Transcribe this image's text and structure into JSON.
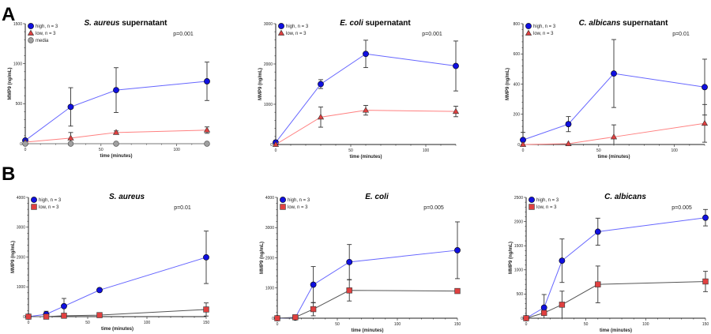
{
  "panel_labels": [
    "A",
    "B"
  ],
  "colors": {
    "high": "#1010e0",
    "high_line": "#6666ff",
    "low": "#e04040",
    "low_line_A": "#ff8080",
    "low_line_B": "#555555",
    "media": "#a0a0a0",
    "error": "#333333"
  },
  "chart_data": [
    {
      "type": "line",
      "panel": "A",
      "title_italic": "S. aureus",
      "title_rest": " supernatant",
      "pvalue": "p=0.001",
      "xlabel": "time (minutes)",
      "ylabel": "MMP9 (ng/mL)",
      "xlim": [
        0,
        120
      ],
      "ylim": [
        0,
        1500
      ],
      "xticks": [
        "0",
        "50",
        "100"
      ],
      "yticks": [
        "0",
        "500",
        "1000",
        "1500"
      ],
      "legend": "top-left",
      "x": [
        0,
        30,
        60,
        120
      ],
      "series": [
        {
          "name": "high, n = 3",
          "marker": "circle",
          "values": [
            40,
            460,
            670,
            780
          ],
          "errors": [
            0,
            240,
            280,
            240
          ]
        },
        {
          "name": "low, n = 3",
          "marker": "triangle",
          "values": [
            20,
            70,
            140,
            170
          ],
          "errors": [
            0,
            70,
            20,
            40
          ]
        },
        {
          "name": "media",
          "marker": "circle-gray",
          "values": [
            0,
            0,
            0,
            0
          ],
          "errors": [
            0,
            0,
            0,
            0
          ]
        }
      ]
    },
    {
      "type": "line",
      "panel": "A",
      "title_italic": "E. coli",
      "title_rest": " supernatant",
      "pvalue": "p=0.001",
      "xlabel": "time (minutes)",
      "ylabel": "MMP9 (ng/mL)",
      "xlim": [
        0,
        120
      ],
      "ylim": [
        0,
        3000
      ],
      "xticks": [
        "0",
        "50",
        "100"
      ],
      "yticks": [
        "0",
        "1000",
        "2000",
        "3000"
      ],
      "legend": "top-left",
      "x": [
        0,
        30,
        60,
        120
      ],
      "series": [
        {
          "name": "high, n = 3",
          "marker": "circle",
          "values": [
            50,
            1500,
            2250,
            1950
          ],
          "errors": [
            50,
            110,
            340,
            620
          ]
        },
        {
          "name": "low, n = 3",
          "marker": "triangle",
          "values": [
            0,
            680,
            850,
            820
          ],
          "errors": [
            0,
            250,
            120,
            130
          ]
        }
      ]
    },
    {
      "type": "line",
      "panel": "A",
      "title_italic": "C. albicans",
      "title_rest": " supernatant",
      "pvalue": "p=0.01",
      "xlabel": "time (minutes)",
      "ylabel": "MMP9 (ng/mL)",
      "xlim": [
        0,
        120
      ],
      "ylim": [
        0,
        800
      ],
      "xticks": [
        "0",
        "50",
        "100"
      ],
      "yticks": [
        "0",
        "200",
        "400",
        "600",
        "800"
      ],
      "legend": "top-left",
      "x": [
        0,
        30,
        60,
        120
      ],
      "series": [
        {
          "name": "high, n = 3",
          "marker": "circle",
          "values": [
            30,
            135,
            470,
            380
          ],
          "errors": [
            50,
            50,
            225,
            185
          ]
        },
        {
          "name": "low, n = 3",
          "marker": "triangle",
          "values": [
            0,
            5,
            50,
            140
          ],
          "errors": [
            0,
            0,
            80,
            125
          ]
        }
      ]
    },
    {
      "type": "line",
      "panel": "B",
      "title_italic": "S. aureus",
      "title_rest": "",
      "pvalue": "p=0.01",
      "xlabel": "time (minutes)",
      "ylabel": "MMP9 (ng/mL)",
      "xlim": [
        0,
        150
      ],
      "ylim": [
        0,
        4000
      ],
      "xticks": [
        "0",
        "50",
        "100",
        "150"
      ],
      "yticks": [
        "0",
        "1000",
        "2000",
        "3000",
        "4000"
      ],
      "legend": "top-left",
      "x": [
        0,
        15,
        30,
        60,
        150
      ],
      "series": [
        {
          "name": "high, n = 3",
          "marker": "circle",
          "values": [
            0,
            80,
            350,
            890,
            1990
          ],
          "errors": [
            0,
            100,
            260,
            0,
            880
          ]
        },
        {
          "name": "low, n = 3",
          "marker": "square",
          "values": [
            0,
            0,
            30,
            50,
            240
          ],
          "errors": [
            0,
            0,
            0,
            30,
            220
          ]
        }
      ]
    },
    {
      "type": "line",
      "panel": "B",
      "title_italic": "E. coli",
      "title_rest": "",
      "pvalue": "p=0.005",
      "xlabel": "time (minutes)",
      "ylabel": "MMP9 (ng/mL)",
      "xlim": [
        0,
        150
      ],
      "ylim": [
        0,
        4000
      ],
      "xticks": [
        "0",
        "50",
        "100",
        "150"
      ],
      "yticks": [
        "0",
        "1000",
        "2000",
        "3000",
        "4000"
      ],
      "legend": "top-left",
      "x": [
        0,
        15,
        30,
        60,
        150
      ],
      "series": [
        {
          "name": "high, n = 3",
          "marker": "circle",
          "values": [
            0,
            20,
            1110,
            1860,
            2250
          ],
          "errors": [
            0,
            0,
            600,
            580,
            940
          ]
        },
        {
          "name": "low, n = 3",
          "marker": "square",
          "values": [
            0,
            30,
            300,
            920,
            900
          ],
          "errors": [
            0,
            0,
            220,
            350,
            0
          ]
        }
      ]
    },
    {
      "type": "line",
      "panel": "B",
      "title_italic": "C. albicans",
      "title_rest": "",
      "pvalue": "p=0.005",
      "xlabel": "time (minutes)",
      "ylabel": "MMP9 (ng/mL)",
      "xlim": [
        0,
        150
      ],
      "ylim": [
        0,
        2500
      ],
      "xticks": [
        "0",
        "50",
        "100",
        "150"
      ],
      "yticks": [
        "0",
        "500",
        "1000",
        "1500",
        "2000",
        "2500"
      ],
      "legend": "top-left",
      "x": [
        0,
        15,
        30,
        60,
        150
      ],
      "series": [
        {
          "name": "high, n = 3",
          "marker": "circle",
          "values": [
            0,
            220,
            1190,
            1790,
            2080
          ],
          "errors": [
            0,
            270,
            450,
            280,
            170
          ]
        },
        {
          "name": "low, n = 3",
          "marker": "square",
          "values": [
            0,
            110,
            280,
            700,
            760
          ],
          "errors": [
            0,
            0,
            280,
            380,
            210
          ]
        }
      ]
    }
  ]
}
